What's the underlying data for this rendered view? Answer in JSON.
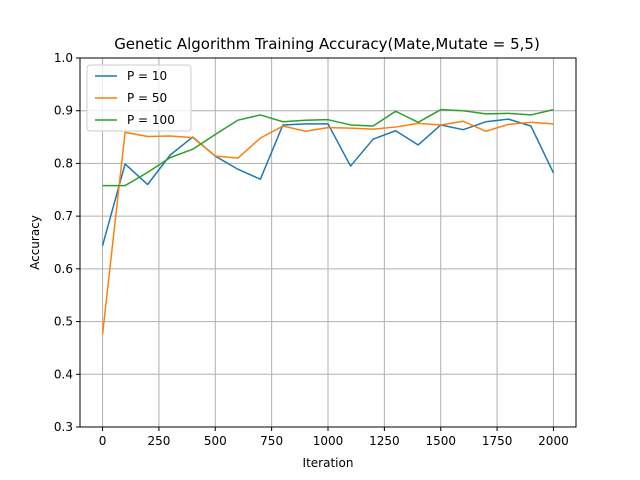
{
  "chart_data": {
    "type": "line",
    "title": "Genetic Algorithm Training Accuracy(Mate,Mutate = 5,5)",
    "xlabel": "Iteration",
    "ylabel": "Accuracy",
    "xlim": [
      -100,
      2100
    ],
    "ylim": [
      0.3,
      1.0
    ],
    "xticks": [
      0,
      250,
      500,
      750,
      1000,
      1250,
      1500,
      1750,
      2000
    ],
    "yticks": [
      0.3,
      0.4,
      0.5,
      0.6,
      0.7,
      0.8,
      0.9,
      1.0
    ],
    "grid": true,
    "legend_position": "top-left",
    "x": [
      0,
      100,
      200,
      300,
      400,
      500,
      600,
      700,
      800,
      900,
      1000,
      1100,
      1200,
      1300,
      1400,
      1500,
      1600,
      1700,
      1800,
      1900,
      2000
    ],
    "series": [
      {
        "name": "P = 10",
        "color": "#1f77b4",
        "values": [
          0.644,
          0.799,
          0.76,
          0.816,
          0.85,
          0.814,
          0.789,
          0.77,
          0.873,
          0.875,
          0.875,
          0.795,
          0.846,
          0.862,
          0.835,
          0.873,
          0.864,
          0.879,
          0.884,
          0.871,
          0.782
        ]
      },
      {
        "name": "P = 50",
        "color": "#ff7f0e",
        "values": [
          0.476,
          0.859,
          0.851,
          0.852,
          0.849,
          0.814,
          0.81,
          0.848,
          0.871,
          0.861,
          0.868,
          0.867,
          0.865,
          0.869,
          0.876,
          0.873,
          0.88,
          0.861,
          0.874,
          0.878,
          0.875
        ]
      },
      {
        "name": "P = 100",
        "color": "#2ca02c",
        "values": [
          0.758,
          0.758,
          0.783,
          0.811,
          0.827,
          0.855,
          0.882,
          0.892,
          0.879,
          0.882,
          0.883,
          0.873,
          0.871,
          0.899,
          0.878,
          0.902,
          0.9,
          0.894,
          0.895,
          0.892,
          0.902
        ]
      }
    ]
  }
}
